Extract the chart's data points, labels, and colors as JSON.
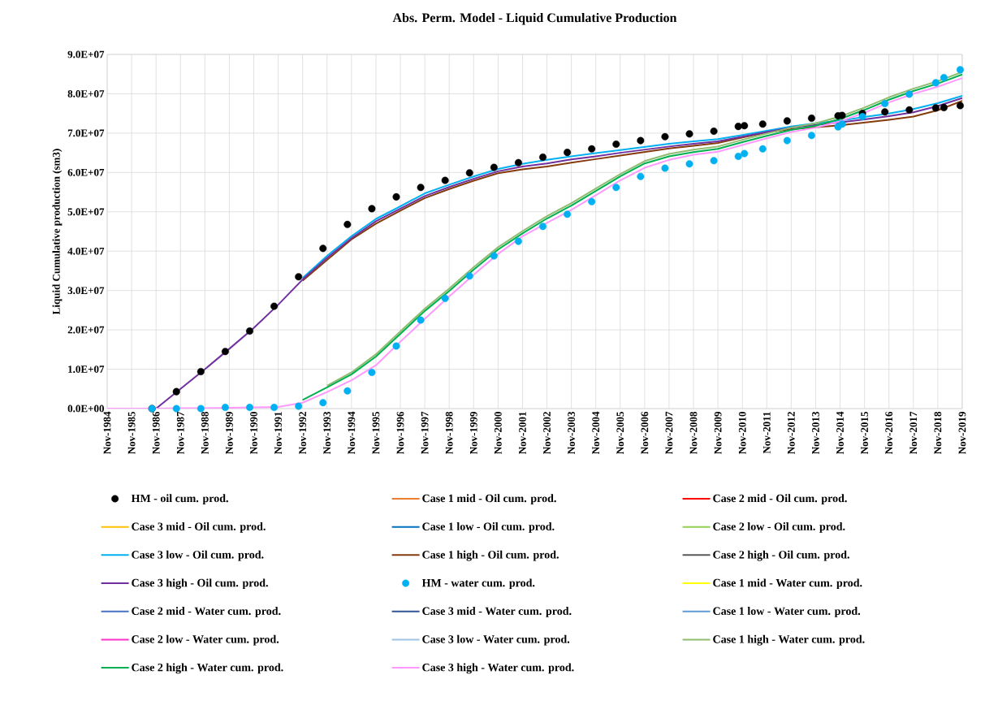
{
  "chart_data": {
    "type": "line",
    "title": "Abs. Perm. Model - Liquid Cumulative Production",
    "ylabel": "Liquid Cumulative production (sm3)",
    "x": [
      "1984-11",
      "1985-11",
      "1986-11",
      "1987-11",
      "1988-11",
      "1989-11",
      "1990-11",
      "1991-11",
      "1992-11",
      "1993-11",
      "1994-11",
      "1995-11",
      "1996-11",
      "1997-11",
      "1998-11",
      "1999-11",
      "2000-11",
      "2001-11",
      "2002-11",
      "2003-11",
      "2004-11",
      "2005-11",
      "2006-11",
      "2007-11",
      "2008-11",
      "2009-11",
      "2010-11",
      "2011-11",
      "2012-11",
      "2013-11",
      "2014-11",
      "2015-11",
      "2016-11",
      "2017-11",
      "2018-11",
      "2019-11"
    ],
    "xlim": [
      "1984-11",
      "2019-11"
    ],
    "xticks": [
      {
        "value": "1984-11",
        "label": "Nov-1984"
      },
      {
        "value": "1985-11",
        "label": "Nov-1985"
      },
      {
        "value": "1986-11",
        "label": "Nov-1986"
      },
      {
        "value": "1987-11",
        "label": "Nov-1987"
      },
      {
        "value": "1988-11",
        "label": "Nov-1988"
      },
      {
        "value": "1989-11",
        "label": "Nov-1989"
      },
      {
        "value": "1990-11",
        "label": "Nov-1990"
      },
      {
        "value": "1991-11",
        "label": "Nov-1991"
      },
      {
        "value": "1992-11",
        "label": "Nov-1992"
      },
      {
        "value": "1993-11",
        "label": "Nov-1993"
      },
      {
        "value": "1994-11",
        "label": "Nov-1994"
      },
      {
        "value": "1995-11",
        "label": "Nov-1995"
      },
      {
        "value": "1996-11",
        "label": "Nov-1996"
      },
      {
        "value": "1997-11",
        "label": "Nov-1997"
      },
      {
        "value": "1998-11",
        "label": "Nov-1998"
      },
      {
        "value": "1999-11",
        "label": "Nov-1999"
      },
      {
        "value": "2000-11",
        "label": "Nov-2000"
      },
      {
        "value": "2001-11",
        "label": "Nov-2001"
      },
      {
        "value": "2002-11",
        "label": "Nov-2002"
      },
      {
        "value": "2003-11",
        "label": "Nov-2003"
      },
      {
        "value": "2004-11",
        "label": "Nov-2004"
      },
      {
        "value": "2005-11",
        "label": "Nov-2005"
      },
      {
        "value": "2006-11",
        "label": "Nov-2006"
      },
      {
        "value": "2007-11",
        "label": "Nov-2007"
      },
      {
        "value": "2008-11",
        "label": "Nov-2008"
      },
      {
        "value": "2009-11",
        "label": "Nov-2009"
      },
      {
        "value": "2010-11",
        "label": "Nov-2010"
      },
      {
        "value": "2011-11",
        "label": "Nov-2011"
      },
      {
        "value": "2012-11",
        "label": "Nov-2012"
      },
      {
        "value": "2013-11",
        "label": "Nov-2013"
      },
      {
        "value": "2014-11",
        "label": "Nov-2014"
      },
      {
        "value": "2015-11",
        "label": "Nov-2015"
      },
      {
        "value": "2016-11",
        "label": "Nov-2016"
      },
      {
        "value": "2017-11",
        "label": "Nov-2017"
      },
      {
        "value": "2018-11",
        "label": "Nov-2018"
      },
      {
        "value": "2019-11",
        "label": "Nov-2019"
      }
    ],
    "ylim": [
      0,
      90000000
    ],
    "yticks": [
      {
        "value": 0,
        "label": "0.0E+00"
      },
      {
        "value": 10000000,
        "label": "1.0E+07"
      },
      {
        "value": 20000000,
        "label": "2.0E+07"
      },
      {
        "value": 30000000,
        "label": "3.0E+07"
      },
      {
        "value": 40000000,
        "label": "4.0E+07"
      },
      {
        "value": 50000000,
        "label": "5.0E+07"
      },
      {
        "value": 60000000,
        "label": "6.0E+07"
      },
      {
        "value": 70000000,
        "label": "7.0E+07"
      },
      {
        "value": 80000000,
        "label": "8.0E+07"
      },
      {
        "value": 90000000,
        "label": "9.0E+07"
      }
    ],
    "grid": true,
    "legend": "bottom",
    "series": [
      {
        "name": "HM - oil cum. prod.",
        "type": "scatter",
        "marker": "circle",
        "color": "#000000",
        "x": [
          "1986-09",
          "1987-09",
          "1988-09",
          "1989-09",
          "1990-09",
          "1991-09",
          "1992-09",
          "1993-09",
          "1994-09",
          "1995-09",
          "1996-09",
          "1997-09",
          "1998-09",
          "1999-09",
          "2000-09",
          "2001-09",
          "2002-09",
          "2003-09",
          "2004-09",
          "2005-09",
          "2006-09",
          "2007-09",
          "2008-09",
          "2009-09",
          "2010-09",
          "2010-12",
          "2011-09",
          "2012-09",
          "2013-09",
          "2014-10",
          "2014-12",
          "2015-10",
          "2016-09",
          "2017-09",
          "2018-10",
          "2019-02",
          "2019-10"
        ],
        "values": [
          0,
          4300000.0,
          9400000.0,
          14500000.0,
          19700000.0,
          26000000.0,
          33500000.0,
          40700000.0,
          46800000.0,
          50800000.0,
          53800000.0,
          56200000.0,
          58000000.0,
          59900000.0,
          61300000.0,
          62500000.0,
          63900000.0,
          65100000.0,
          66000000.0,
          67200000.0,
          68100000.0,
          69100000.0,
          69800000.0,
          70500000.0,
          71700000.0,
          71900000.0,
          72300000.0,
          73100000.0,
          73800000.0,
          74400000.0,
          74500000.0,
          75000000.0,
          75400000.0,
          75900000.0,
          76400000.0,
          76500000.0,
          77000000.0
        ]
      },
      {
        "name": "Case 1 mid - Oil cum. prod.",
        "color": "#ed7d31",
        "values": [
          null,
          null,
          null,
          null,
          null,
          null,
          null,
          null,
          null,
          null,
          null,
          null,
          null,
          null,
          null,
          null,
          null,
          null,
          null,
          null,
          null,
          null,
          null,
          null,
          null,
          null,
          null,
          null,
          null,
          null,
          null,
          null,
          null,
          null,
          null,
          null
        ]
      },
      {
        "name": "Case 2 mid - Oil cum. prod.",
        "color": "#ff0000",
        "values": [
          null,
          null,
          null,
          null,
          null,
          null,
          null,
          null,
          null,
          null,
          null,
          null,
          null,
          null,
          null,
          null,
          null,
          null,
          null,
          null,
          null,
          null,
          null,
          null,
          null,
          null,
          null,
          null,
          null,
          null,
          null,
          null,
          null,
          null,
          null,
          null
        ]
      },
      {
        "name": "Case 3 mid - Oil cum. prod.",
        "color": "#ffc000",
        "values": [
          null,
          null,
          null,
          null,
          null,
          null,
          null,
          null,
          null,
          null,
          null,
          null,
          null,
          null,
          null,
          null,
          null,
          null,
          null,
          null,
          null,
          null,
          null,
          null,
          null,
          null,
          null,
          null,
          null,
          null,
          null,
          null,
          null,
          null,
          null,
          null
        ]
      },
      {
        "name": "Case 1 low - Oil cum. prod.",
        "color": "#0070c0",
        "values": [
          null,
          null,
          null,
          null,
          null,
          null,
          null,
          null,
          null,
          null,
          null,
          null,
          null,
          null,
          null,
          null,
          null,
          null,
          null,
          null,
          null,
          null,
          null,
          null,
          null,
          null,
          null,
          null,
          null,
          null,
          null,
          null,
          null,
          null,
          null,
          null
        ]
      },
      {
        "name": "Case 2 low - Oil cum. prod.",
        "color": "#92d050",
        "values": [
          null,
          null,
          null,
          null,
          null,
          null,
          null,
          null,
          null,
          null,
          null,
          null,
          null,
          null,
          null,
          null,
          null,
          null,
          null,
          null,
          null,
          null,
          null,
          null,
          null,
          null,
          null,
          null,
          null,
          null,
          null,
          null,
          null,
          null,
          null,
          null
        ]
      },
      {
        "name": "Case 3 low - Oil cum. prod.",
        "color": "#00b0f0",
        "values": [
          null,
          null,
          null,
          null,
          null,
          null,
          null,
          null,
          33200000.0,
          38800000.0,
          43800000.0,
          48200000.0,
          51400000.0,
          54700000.0,
          56900000.0,
          59000000.0,
          60900000.0,
          62200000.0,
          63200000.0,
          64100000.0,
          64900000.0,
          65700000.0,
          66500000.0,
          67300000.0,
          67900000.0,
          68500000.0,
          69500000.0,
          70600000.0,
          71700000.0,
          72500000.0,
          73200000.0,
          74100000.0,
          75000000.0,
          76100000.0,
          77600000.0,
          79500000.0
        ]
      },
      {
        "name": "Case 1 high - Oil cum. prod.",
        "color": "#843c0c",
        "values": [
          null,
          null,
          null,
          null,
          null,
          null,
          null,
          null,
          32500000.0,
          37800000.0,
          43000000.0,
          47000000.0,
          50300000.0,
          53500000.0,
          55800000.0,
          57900000.0,
          59800000.0,
          60800000.0,
          61500000.0,
          62500000.0,
          63400000.0,
          64300000.0,
          65200000.0,
          66100000.0,
          66800000.0,
          67500000.0,
          68900000.0,
          70200000.0,
          71000000.0,
          71500000.0,
          72000000.0,
          72700000.0,
          73400000.0,
          74200000.0,
          75800000.0,
          78200000.0
        ]
      },
      {
        "name": "Case 2 high - Oil cum. prod.",
        "color": "#595959",
        "values": [
          null,
          null,
          null,
          null,
          null,
          null,
          null,
          null,
          null,
          null,
          null,
          null,
          null,
          null,
          null,
          null,
          null,
          null,
          null,
          null,
          null,
          null,
          null,
          null,
          null,
          null,
          null,
          null,
          null,
          null,
          null,
          null,
          null,
          null,
          null,
          null
        ]
      },
      {
        "name": "Case 3 high - Oil cum. prod.",
        "color": "#7030a0",
        "values": [
          null,
          null,
          0,
          5000000.0,
          10000000.0,
          15200000.0,
          20500000.0,
          26400000.0,
          32800000.0,
          38300000.0,
          43300000.0,
          47600000.0,
          50800000.0,
          54000000.0,
          56300000.0,
          58400000.0,
          60300000.0,
          61500000.0,
          62300000.0,
          63300000.0,
          64100000.0,
          65000000.0,
          65800000.0,
          66600000.0,
          67300000.0,
          67900000.0,
          69100000.0,
          70300000.0,
          71400000.0,
          72100000.0,
          72700000.0,
          73500000.0,
          74300000.0,
          75300000.0,
          76900000.0,
          78900000.0
        ]
      },
      {
        "name": "HM - water cum. prod.",
        "type": "scatter",
        "marker": "circle",
        "color": "#00b0f0",
        "x": [
          "1986-09",
          "1987-09",
          "1988-09",
          "1989-09",
          "1990-09",
          "1991-09",
          "1992-09",
          "1993-09",
          "1994-09",
          "1995-09",
          "1996-09",
          "1997-09",
          "1998-09",
          "1999-09",
          "2000-09",
          "2001-09",
          "2002-09",
          "2003-09",
          "2004-09",
          "2005-09",
          "2006-09",
          "2007-09",
          "2008-09",
          "2009-09",
          "2010-09",
          "2010-12",
          "2011-09",
          "2012-09",
          "2013-09",
          "2014-10",
          "2014-12",
          "2015-10",
          "2016-09",
          "2017-09",
          "2018-10",
          "2019-02",
          "2019-10"
        ],
        "values": [
          0,
          0,
          0,
          300000.0,
          300000.0,
          300000.0,
          600000.0,
          1500000.0,
          4500000.0,
          9200000.0,
          15900000.0,
          22500000.0,
          28000000.0,
          33700000.0,
          38800000.0,
          42500000.0,
          46300000.0,
          49400000.0,
          52600000.0,
          56200000.0,
          59000000.0,
          61100000.0,
          62200000.0,
          63000000.0,
          64100000.0,
          64800000.0,
          66000000.0,
          68100000.0,
          69400000.0,
          71600000.0,
          72300000.0,
          74200000.0,
          77500000.0,
          79900000.0,
          82800000.0,
          84100000.0,
          86100000.0
        ]
      },
      {
        "name": "Case 1 mid - Water cum. prod.",
        "color": "#ffff00",
        "values": [
          null,
          null,
          null,
          null,
          null,
          null,
          null,
          null,
          null,
          null,
          null,
          null,
          null,
          null,
          null,
          null,
          null,
          null,
          null,
          null,
          null,
          null,
          null,
          null,
          null,
          null,
          null,
          null,
          null,
          null,
          null,
          null,
          null,
          null,
          null,
          null
        ]
      },
      {
        "name": "Case 2 mid - Water cum. prod.",
        "color": "#4472c4",
        "values": [
          null,
          null,
          null,
          null,
          null,
          null,
          null,
          null,
          null,
          null,
          null,
          null,
          null,
          null,
          null,
          null,
          null,
          null,
          null,
          null,
          null,
          null,
          null,
          null,
          null,
          null,
          null,
          null,
          null,
          null,
          null,
          null,
          null,
          null,
          null,
          null
        ]
      },
      {
        "name": "Case 3 mid - Water cum. prod.",
        "color": "#2f5597",
        "values": [
          null,
          null,
          null,
          null,
          null,
          null,
          null,
          null,
          null,
          null,
          null,
          null,
          null,
          null,
          null,
          null,
          null,
          null,
          null,
          null,
          null,
          null,
          null,
          null,
          null,
          null,
          null,
          null,
          null,
          null,
          null,
          null,
          null,
          null,
          null,
          null
        ]
      },
      {
        "name": "Case 1 low - Water cum. prod.",
        "color": "#5b9bd5",
        "values": [
          null,
          null,
          null,
          null,
          null,
          null,
          null,
          null,
          null,
          null,
          null,
          null,
          null,
          null,
          null,
          null,
          null,
          null,
          null,
          null,
          null,
          null,
          null,
          null,
          null,
          null,
          null,
          null,
          null,
          null,
          null,
          null,
          null,
          null,
          null,
          null
        ]
      },
      {
        "name": "Case 2 low - Water cum. prod.",
        "color": "#ff33cc",
        "values": [
          null,
          null,
          null,
          null,
          null,
          null,
          null,
          null,
          null,
          null,
          null,
          null,
          null,
          null,
          null,
          null,
          null,
          null,
          null,
          null,
          null,
          null,
          null,
          null,
          null,
          null,
          null,
          null,
          null,
          null,
          null,
          null,
          null,
          null,
          null,
          null
        ]
      },
      {
        "name": "Case 3 low - Water cum. prod.",
        "color": "#9dc3e6",
        "values": [
          null,
          null,
          null,
          null,
          null,
          null,
          null,
          null,
          null,
          null,
          null,
          null,
          null,
          null,
          null,
          null,
          null,
          null,
          null,
          null,
          null,
          null,
          null,
          null,
          null,
          null,
          null,
          null,
          null,
          null,
          null,
          null,
          null,
          null,
          null,
          null
        ]
      },
      {
        "name": "Case 1 high - Water cum. prod.",
        "color": "#8fbc6f",
        "values": [
          null,
          null,
          null,
          null,
          null,
          null,
          null,
          null,
          null,
          5800000.0,
          9200000.0,
          13800000.0,
          19600000.0,
          25400000.0,
          30500000.0,
          35900000.0,
          41000000.0,
          45100000.0,
          48900000.0,
          52200000.0,
          55900000.0,
          59600000.0,
          62900000.0,
          64700000.0,
          65800000.0,
          66600000.0,
          68300000.0,
          69900000.0,
          71400000.0,
          72500000.0,
          74200000.0,
          76500000.0,
          79100000.0,
          81300000.0,
          83200000.0,
          85500000.0
        ]
      },
      {
        "name": "Case 2 high - Water cum. prod.",
        "color": "#00b050",
        "values": [
          null,
          null,
          null,
          null,
          null,
          null,
          null,
          null,
          2200000.0,
          5400000.0,
          8700000.0,
          13200000.0,
          19000000.0,
          24800000.0,
          29900000.0,
          35300000.0,
          40400000.0,
          44500000.0,
          48300000.0,
          51600000.0,
          55300000.0,
          59000000.0,
          62300000.0,
          64100000.0,
          65200000.0,
          66000000.0,
          67700000.0,
          69300000.0,
          70800000.0,
          71900000.0,
          73600000.0,
          75900000.0,
          78500000.0,
          80700000.0,
          82600000.0,
          84900000.0
        ]
      },
      {
        "name": "Case 3 high - Water cum. prod.",
        "color": "#ff99ff",
        "values": [
          0,
          0,
          0,
          100000.0,
          100000.0,
          200000.0,
          300000.0,
          400000.0,
          1500000.0,
          4200000.0,
          7200000.0,
          11000000.0,
          17000000.0,
          22800000.0,
          28500000.0,
          34000000.0,
          39300000.0,
          43800000.0,
          47200000.0,
          50500000.0,
          54200000.0,
          58000000.0,
          61200000.0,
          63200000.0,
          64500000.0,
          65300000.0,
          67000000.0,
          68700000.0,
          70300000.0,
          71400000.0,
          73000000.0,
          75200000.0,
          77800000.0,
          80000000.0,
          81800000.0,
          84000000.0
        ]
      }
    ]
  }
}
